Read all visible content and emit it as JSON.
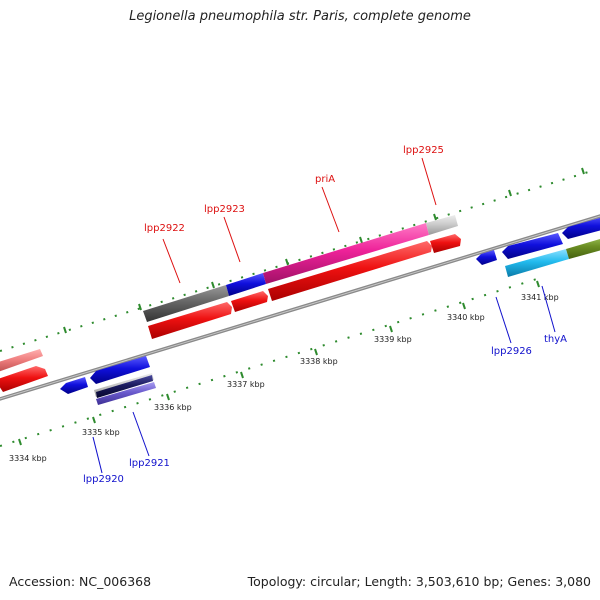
{
  "title": "Legionella pneumophila str. Paris, complete genome",
  "footer": {
    "accession": "Accession: NC_006368",
    "stats": "Topology: circular; Length: 3,503,610 bp; Genes: 3,080"
  },
  "colors": {
    "backbone": "#8a8a8a",
    "tick_green": "#2e8b2e",
    "forward_label": "#dd1111",
    "reverse_label": "#1111cc",
    "red_gene": "#ee1111",
    "blue_gene": "#1010dd",
    "pink_gene": "#ee2299",
    "dark_grey_gene": "#666666",
    "light_grey_gene": "#cccccc",
    "salmon_gene": "#f08080",
    "cyan_gene": "#22bbee",
    "olive_gene": "#6b8e23",
    "purple_gene": "#6a5acd",
    "navy_gene": "#1a1a5e"
  },
  "scale": {
    "unit": "kbp",
    "ticks": [
      {
        "kbp": 3334,
        "label": "3334 kbp"
      },
      {
        "kbp": 3335,
        "label": "3335 kbp"
      },
      {
        "kbp": 3336,
        "label": "3336 kbp"
      },
      {
        "kbp": 3337,
        "label": "3337 kbp"
      },
      {
        "kbp": 3338,
        "label": "3338 kbp"
      },
      {
        "kbp": 3339,
        "label": "3339 kbp"
      },
      {
        "kbp": 3340,
        "label": "3340 kbp"
      },
      {
        "kbp": 3341,
        "label": "3341 kbp"
      }
    ]
  },
  "gene_labels": {
    "forward": [
      "lpp2922",
      "lpp2923",
      "priA",
      "lpp2925"
    ],
    "reverse": [
      "lpp2920",
      "lpp2921",
      "lpp2926",
      "thyA"
    ]
  }
}
